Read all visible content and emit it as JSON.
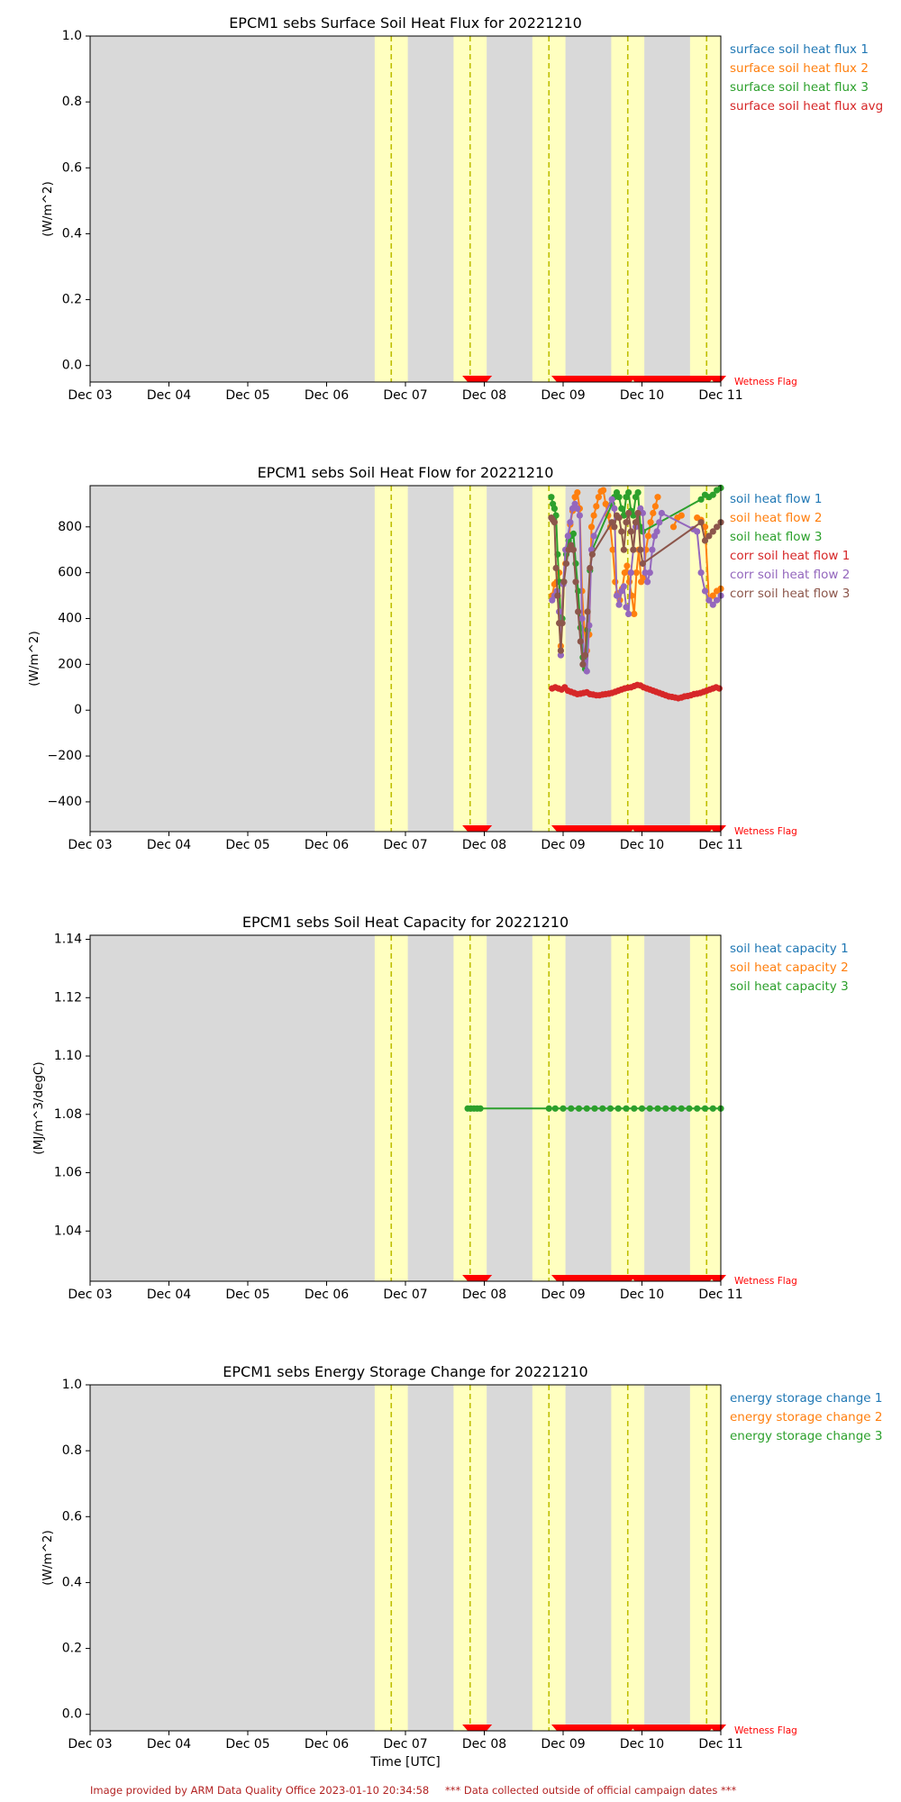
{
  "figure": {
    "footer_left": "Image provided by ARM Data Quality Office 2023-01-10 20:34:58",
    "footer_right": "*** Data collected outside of official campaign dates ***",
    "xlabel": "Time [UTC]",
    "x_ticks": [
      "Dec 03",
      "Dec 04",
      "Dec 05",
      "Dec 06",
      "Dec 07",
      "Dec 08",
      "Dec 09",
      "Dec 10",
      "Dec 11"
    ],
    "x_range_days": [
      3,
      11
    ],
    "wetness_flag_label": "Wetness Flag",
    "colors": {
      "background": "#d9d9d9",
      "highlight_band": "#ffffc0",
      "dashed_line": "#bfbf00",
      "wetness_flag": "#ff0000",
      "series": [
        "#1f77b4",
        "#ff7f0e",
        "#2ca02c",
        "#d62728",
        "#9467bd",
        "#8c564b"
      ]
    },
    "highlight_bands_days": [
      [
        6.61,
        7.03
      ],
      [
        7.61,
        8.03
      ],
      [
        8.61,
        9.03
      ],
      [
        9.61,
        10.03
      ],
      [
        10.61,
        11.0
      ]
    ],
    "dashed_lines_days": [
      6.82,
      7.82,
      8.82,
      9.82,
      10.82
    ],
    "wetness_flag_segments_days": [
      [
        7.79,
        8.03
      ],
      [
        8.92,
        9.86
      ],
      [
        9.91,
        10.86
      ],
      [
        10.91,
        11.0
      ]
    ]
  },
  "chart_data": [
    {
      "type": "line",
      "title": "EPCM1 sebs Surface Soil Heat Flux for 20221210",
      "ylabel": "(W/m^2)",
      "ylim": [
        -0.05,
        1.0
      ],
      "y_ticks": [
        "0.0",
        "0.2",
        "0.4",
        "0.6",
        "0.8",
        "1.0"
      ],
      "y_tick_values": [
        0.0,
        0.2,
        0.4,
        0.6,
        0.8,
        1.0
      ],
      "series": [
        {
          "name": "surface soil heat flux 1",
          "x": [],
          "values": []
        },
        {
          "name": "surface soil heat flux 2",
          "x": [],
          "values": []
        },
        {
          "name": "surface soil heat flux 3",
          "x": [],
          "values": []
        },
        {
          "name": "surface soil heat flux avg",
          "x": [],
          "values": []
        }
      ]
    },
    {
      "type": "line",
      "title": "EPCM1 sebs Soil Heat Flow for 20221210",
      "ylabel": "(W/m^2)",
      "ylim": [
        -530,
        980
      ],
      "y_ticks": [
        "−400",
        "−200",
        "0",
        "200",
        "400",
        "600",
        "800"
      ],
      "y_tick_values": [
        -400,
        -200,
        0,
        200,
        400,
        600,
        800
      ],
      "series": [
        {
          "name": "soil heat flow 1",
          "x": [],
          "values": []
        },
        {
          "name": "soil heat flow 2",
          "x": [
            8.86,
            8.89,
            8.92,
            8.95,
            8.97,
            9.0,
            9.03,
            9.06,
            9.09,
            9.12,
            9.15,
            9.18,
            9.21,
            9.24,
            9.27,
            9.3,
            9.33,
            9.36,
            9.39,
            9.42,
            9.45,
            9.48,
            9.51,
            9.54,
            9.57,
            9.6,
            9.63,
            9.66,
            9.69,
            9.72,
            9.75,
            9.78,
            9.81,
            9.84,
            9.87,
            9.9,
            9.93,
            9.96,
            9.99,
            10.02,
            10.05,
            10.08,
            10.11,
            10.14,
            10.17,
            10.2,
            10.23,
            10.26,
            10.29,
            10.32,
            10.35,
            10.4,
            10.45,
            10.5,
            10.55,
            10.6,
            10.65,
            10.7,
            10.75,
            10.8,
            10.85,
            10.9,
            10.95,
            11.0
          ],
          "values": [
            500,
            550,
            560,
            600,
            280,
            560,
            640,
            700,
            810,
            870,
            930,
            950,
            880,
            520,
            350,
            260,
            330,
            800,
            850,
            890,
            930,
            955,
            960,
            900,
            850,
            800,
            700,
            560,
            510,
            480,
            530,
            600,
            630,
            560,
            500,
            420,
            600,
            700,
            560,
            580,
            700,
            760,
            820,
            860,
            890,
            930,
            null,
            null,
            null,
            null,
            null,
            800,
            840,
            850,
            null,
            null,
            null,
            840,
            830,
            800,
            480,
            500,
            520,
            530
          ]
        },
        {
          "name": "soil heat flow 3",
          "x": [
            8.85,
            8.87,
            8.89,
            8.91,
            8.93,
            8.95,
            8.97,
            8.99,
            9.01,
            9.04,
            9.07,
            9.1,
            9.13,
            9.16,
            9.19,
            9.22,
            9.25,
            9.28,
            9.31,
            9.34,
            9.37,
            9.62,
            9.65,
            9.68,
            9.71,
            9.74,
            9.77,
            9.8,
            9.83,
            9.86,
            9.89,
            9.92,
            9.95,
            9.98,
            10.01,
            10.75,
            10.8,
            10.85,
            10.9,
            10.95,
            11.0
          ],
          "values": [
            930,
            900,
            880,
            850,
            680,
            560,
            380,
            400,
            560,
            680,
            740,
            760,
            770,
            640,
            520,
            360,
            230,
            180,
            350,
            610,
            700,
            900,
            930,
            950,
            930,
            880,
            850,
            930,
            950,
            870,
            850,
            930,
            950,
            800,
            780,
            920,
            940,
            930,
            940,
            960,
            970
          ]
        },
        {
          "name": "corr soil heat flow 1",
          "x": [
            8.86,
            8.9,
            8.94,
            8.98,
            9.02,
            9.06,
            9.1,
            9.14,
            9.18,
            9.22,
            9.26,
            9.3,
            9.34,
            9.38,
            9.42,
            9.46,
            9.5,
            9.54,
            9.58,
            9.62,
            9.66,
            9.7,
            9.74,
            9.78,
            9.82,
            9.86,
            9.9,
            9.94,
            9.98,
            10.02,
            10.06,
            10.1,
            10.14,
            10.18,
            10.22,
            10.26,
            10.3,
            10.34,
            10.38,
            10.42,
            10.46,
            10.5,
            10.54,
            10.58,
            10.62,
            10.66,
            10.7,
            10.74,
            10.78,
            10.82,
            10.86,
            10.9,
            10.94,
            10.98
          ],
          "values": [
            95,
            100,
            95,
            90,
            100,
            85,
            80,
            75,
            70,
            72,
            75,
            78,
            70,
            68,
            65,
            65,
            68,
            70,
            72,
            75,
            80,
            85,
            90,
            95,
            98,
            100,
            105,
            110,
            108,
            100,
            95,
            90,
            85,
            80,
            75,
            70,
            65,
            60,
            58,
            55,
            52,
            55,
            60,
            62,
            65,
            70,
            72,
            75,
            80,
            85,
            90,
            95,
            100,
            95
          ]
        },
        {
          "name": "corr soil heat flow 2",
          "x": [
            8.86,
            8.89,
            8.92,
            8.95,
            8.97,
            9.0,
            9.03,
            9.06,
            9.09,
            9.12,
            9.15,
            9.18,
            9.21,
            9.24,
            9.27,
            9.3,
            9.33,
            9.36,
            9.39,
            9.62,
            9.65,
            9.68,
            9.71,
            9.74,
            9.77,
            9.8,
            9.83,
            9.86,
            9.89,
            9.92,
            9.95,
            9.98,
            10.01,
            10.04,
            10.07,
            10.1,
            10.13,
            10.16,
            10.19,
            10.22,
            10.25,
            10.65,
            10.7,
            10.75,
            10.8,
            10.85,
            10.9,
            10.95,
            11.0
          ],
          "values": [
            480,
            500,
            520,
            430,
            240,
            550,
            700,
            760,
            820,
            880,
            900,
            880,
            850,
            400,
            210,
            170,
            370,
            700,
            760,
            920,
            880,
            500,
            460,
            520,
            540,
            450,
            420,
            600,
            700,
            800,
            860,
            880,
            860,
            600,
            560,
            600,
            700,
            760,
            780,
            820,
            860,
            790,
            780,
            600,
            520,
            480,
            460,
            480,
            500
          ]
        },
        {
          "name": "corr soil heat flow 3",
          "x": [
            8.85,
            8.87,
            8.89,
            8.91,
            8.93,
            8.95,
            8.97,
            8.99,
            9.01,
            9.04,
            9.07,
            9.1,
            9.13,
            9.16,
            9.19,
            9.22,
            9.25,
            9.28,
            9.31,
            9.34,
            9.37,
            9.62,
            9.65,
            9.68,
            9.71,
            9.74,
            9.77,
            9.8,
            9.83,
            9.86,
            9.89,
            9.92,
            9.95,
            9.98,
            10.01,
            10.75,
            10.8,
            10.85,
            10.9,
            10.95,
            11.0
          ],
          "values": [
            840,
            830,
            820,
            620,
            500,
            380,
            260,
            380,
            560,
            640,
            700,
            720,
            700,
            560,
            430,
            300,
            200,
            240,
            430,
            620,
            680,
            820,
            800,
            850,
            840,
            780,
            700,
            820,
            860,
            780,
            700,
            820,
            860,
            700,
            640,
            820,
            740,
            760,
            780,
            800,
            820
          ]
        }
      ]
    },
    {
      "type": "line",
      "title": "EPCM1 sebs Soil Heat Capacity for 20221210",
      "ylabel": "(MJ/m^3/degC)",
      "ylim": [
        1.0228,
        1.1414
      ],
      "y_ticks": [
        "1.04",
        "1.06",
        "1.08",
        "1.10",
        "1.12",
        "1.14"
      ],
      "y_tick_values": [
        1.04,
        1.06,
        1.08,
        1.1,
        1.12,
        1.14
      ],
      "series": [
        {
          "name": "soil heat capacity 1",
          "x": [],
          "values": []
        },
        {
          "name": "soil heat capacity 2",
          "x": [],
          "values": []
        },
        {
          "name": "soil heat capacity 3",
          "x": [
            7.79,
            7.83,
            7.87,
            7.91,
            7.95,
            8.82,
            8.9,
            9.0,
            9.1,
            9.2,
            9.3,
            9.4,
            9.5,
            9.6,
            9.7,
            9.8,
            9.9,
            10.0,
            10.1,
            10.2,
            10.3,
            10.4,
            10.5,
            10.6,
            10.7,
            10.8,
            10.9,
            11.0
          ],
          "values": [
            1.082,
            1.082,
            1.082,
            1.082,
            1.082,
            1.082,
            1.082,
            1.082,
            1.082,
            1.082,
            1.082,
            1.082,
            1.082,
            1.082,
            1.082,
            1.082,
            1.082,
            1.082,
            1.082,
            1.082,
            1.082,
            1.082,
            1.082,
            1.082,
            1.082,
            1.082,
            1.082,
            1.082
          ]
        }
      ]
    },
    {
      "type": "line",
      "title": "EPCM1 sebs Energy Storage Change for 20221210",
      "ylabel": "(W/m^2)",
      "ylim": [
        -0.05,
        1.0
      ],
      "y_ticks": [
        "0.0",
        "0.2",
        "0.4",
        "0.6",
        "0.8",
        "1.0"
      ],
      "y_tick_values": [
        0.0,
        0.2,
        0.4,
        0.6,
        0.8,
        1.0
      ],
      "series": [
        {
          "name": "energy storage change 1",
          "x": [],
          "values": []
        },
        {
          "name": "energy storage change 2",
          "x": [],
          "values": []
        },
        {
          "name": "energy storage change 3",
          "x": [],
          "values": []
        }
      ]
    }
  ]
}
